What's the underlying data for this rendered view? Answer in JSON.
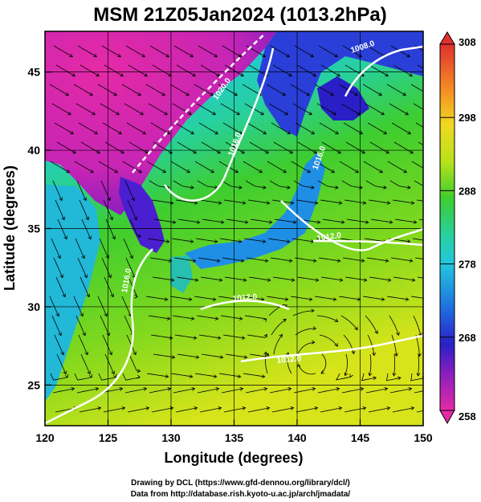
{
  "title": "MSM 21Z05Jan2024 (1013.2hPa)",
  "axes": {
    "xlabel": "Longitude (degrees)",
    "ylabel": "Latitude  (degrees)",
    "xlim": [
      120,
      150
    ],
    "ylim": [
      22.4,
      47.6
    ],
    "xticks": [
      120,
      125,
      130,
      135,
      140,
      145,
      150
    ],
    "yticks": [
      25,
      30,
      35,
      40,
      45
    ],
    "grid": true
  },
  "colorbar": {
    "range": [
      258,
      308
    ],
    "labels": [
      "308",
      "298",
      "288",
      "278",
      "268",
      "258"
    ],
    "ticks": [
      308,
      298,
      288,
      278,
      268,
      258
    ],
    "colors": [
      "#e1302f",
      "#f48a24",
      "#f1d820",
      "#b7e21a",
      "#3ecd2f",
      "#27d0a0",
      "#22c7dd",
      "#1f6fe0",
      "#2a1fc7",
      "#8b1fbf",
      "#e52aa6"
    ]
  },
  "contours": {
    "color": "#ffffff",
    "labels": [
      "1008.0",
      "1020.0",
      "1016.0",
      "1012.0",
      "1016.0",
      "1012.0",
      "1012.0",
      "1016.0"
    ]
  },
  "colors": {
    "land_cold": "#e52aa6",
    "sea_warm": "#b7e21a",
    "streamline": "#000000"
  },
  "credits": {
    "line1": "Drawing by DCL (https://www.gfd-dennou.org/library/dcl/)",
    "line2": "Data from http://database.rish.kyoto-u.ac.jp/arch/jmadata/"
  }
}
